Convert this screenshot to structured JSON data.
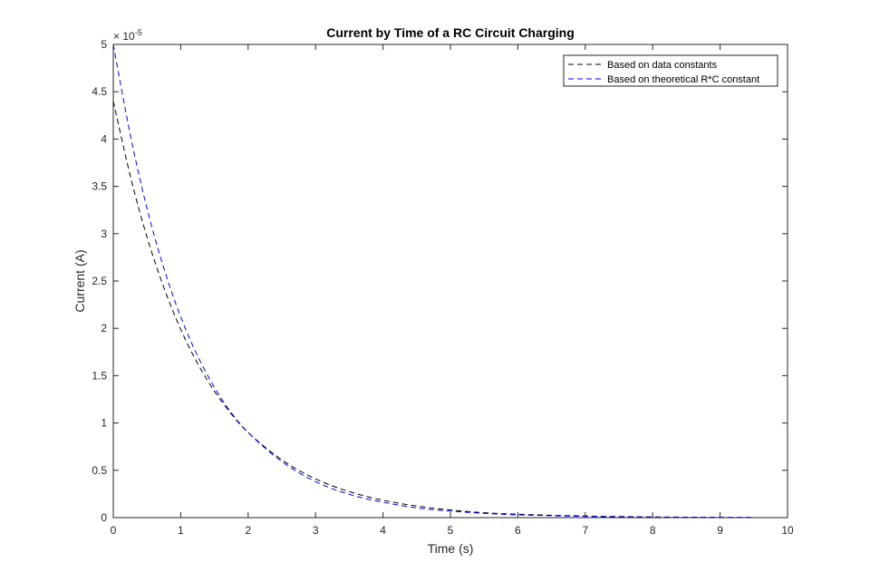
{
  "chart_data": {
    "type": "line",
    "title": "Current by Time of a RC Circuit Charging",
    "xlabel": "Time (s)",
    "ylabel": "Current (A)",
    "exponent_label": "× 10",
    "exponent_power": "-5",
    "xlim": [
      0,
      10
    ],
    "ylim": [
      0,
      5
    ],
    "xticks": [
      "0",
      "1",
      "2",
      "3",
      "4",
      "5",
      "6",
      "7",
      "8",
      "9",
      "10"
    ],
    "yticks": [
      "0",
      "0.5",
      "1",
      "1.5",
      "2",
      "2.5",
      "3",
      "3.5",
      "4",
      "4.5",
      "5"
    ],
    "grid": false,
    "legend_position": "top-right",
    "series": [
      {
        "name": "Based on data constants",
        "color": "#000000",
        "x": [
          0,
          0.25,
          0.5,
          0.75,
          1,
          1.25,
          1.5,
          1.75,
          2,
          2.5,
          3,
          3.5,
          4,
          4.5,
          5,
          5.5,
          6,
          7,
          8,
          9,
          9.5
        ],
        "y": [
          4.4,
          3.6,
          2.95,
          2.42,
          1.98,
          1.62,
          1.33,
          1.09,
          0.89,
          0.6,
          0.4,
          0.27,
          0.18,
          0.12,
          0.08,
          0.05,
          0.035,
          0.016,
          0.007,
          0.003,
          0.002
        ]
      },
      {
        "name": "Based on theoretical R*C constant",
        "color": "#0000ff",
        "x": [
          0,
          0.25,
          0.5,
          0.75,
          1,
          1.25,
          1.5,
          1.75,
          2,
          2.5,
          3,
          3.5,
          4,
          4.5,
          5,
          5.5,
          6,
          7,
          8,
          9,
          9.5
        ],
        "y": [
          5.0,
          4.03,
          3.25,
          2.62,
          2.11,
          1.7,
          1.37,
          1.1,
          0.89,
          0.58,
          0.37,
          0.24,
          0.16,
          0.1,
          0.068,
          0.044,
          0.028,
          0.012,
          0.005,
          0.002,
          0.001
        ]
      }
    ]
  }
}
